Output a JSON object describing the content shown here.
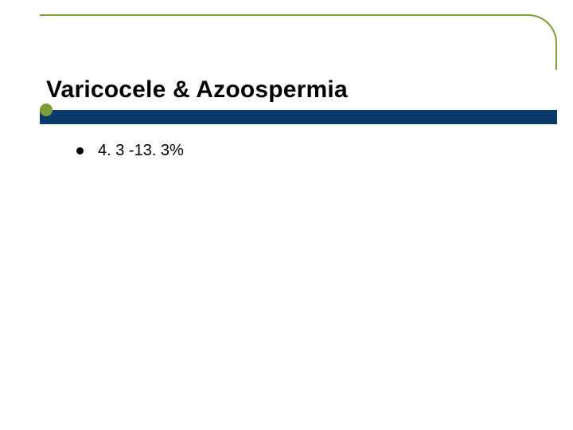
{
  "slide": {
    "title": "Varicocele & Azoospermia",
    "title_fontsize": 30,
    "title_color": "#000000",
    "bullets": [
      {
        "text": "4. 3 -13. 3%"
      }
    ],
    "bullet_fontsize": 20,
    "bullet_text_color": "#000000"
  },
  "theme": {
    "background_color": "#ffffff",
    "border_color": "#7e9b3c",
    "accent_dot_color": "#7e9b3c",
    "title_bar_color": "#0a3a6a",
    "title_bar_height": 18,
    "bullet_dot_color": "#000000"
  }
}
